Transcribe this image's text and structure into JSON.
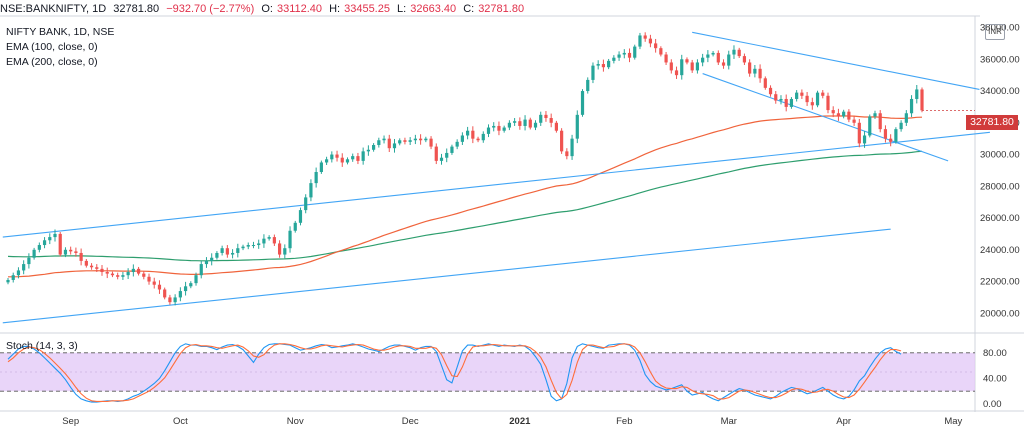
{
  "header": {
    "symbol": "NSE:BANKNIFTY, 1D",
    "last": "32781.80",
    "change": "−932.70 (−2.77%)",
    "o_label": "O:",
    "o_value": "33112.40",
    "h_label": "H:",
    "h_value": "33455.25",
    "l_label": "L:",
    "l_value": "32663.40",
    "c_label": "C:",
    "c_value": "32781.80"
  },
  "legend": {
    "title": "NIFTY BANK, 1D, NSE",
    "ema100": "EMA (100, close, 0)",
    "ema200": "EMA (200, close, 0)",
    "stoch": "Stoch (14, 3, 3)"
  },
  "currency": "INR",
  "last_price_label": "32781.80",
  "colors": {
    "up": "#26a69a",
    "down": "#ef5350",
    "ema100": "#f0643c",
    "ema200": "#2e9e6e",
    "trend": "#42a5f5",
    "stoch_k": "#2196f3",
    "stoch_d": "#ff6d3a",
    "stoch_band": "#e1c7f7"
  },
  "chart_data": [
    {
      "type": "candlestick",
      "title": "NIFTY BANK, 1D, NSE",
      "x_ticks": [
        "Sep",
        "Oct",
        "Nov",
        "Dec",
        "2021",
        "Feb",
        "Mar",
        "Apr",
        "May"
      ],
      "y_ticks": [
        "38000.00",
        "36000.00",
        "34000.00",
        "32000.00",
        "30000.00",
        "28000.00",
        "26000.00",
        "24000.00",
        "22000.00",
        "20000.00"
      ],
      "ylim": [
        19200,
        38600
      ],
      "legend_position": "top-left",
      "grid": false,
      "close": [
        22100,
        22400,
        22700,
        23100,
        23500,
        24000,
        24300,
        24600,
        24800,
        25000,
        23700,
        24000,
        23900,
        23800,
        23300,
        23000,
        22900,
        22800,
        22600,
        22500,
        22400,
        22300,
        22400,
        22600,
        22800,
        22500,
        22300,
        22000,
        21800,
        21500,
        21000,
        20700,
        21000,
        21400,
        21700,
        21900,
        22400,
        23100,
        23300,
        23500,
        23800,
        24100,
        23700,
        23800,
        24100,
        24200,
        24300,
        24300,
        24400,
        24700,
        24800,
        24400,
        23700,
        24100,
        25200,
        25700,
        26500,
        27300,
        28200,
        28900,
        29500,
        29700,
        30000,
        29800,
        29500,
        29700,
        29900,
        29600,
        30200,
        30300,
        30600,
        30900,
        31000,
        30400,
        30700,
        30900,
        30800,
        30900,
        31000,
        30900,
        31000,
        30500,
        29600,
        29800,
        30100,
        30500,
        30800,
        31200,
        31500,
        31000,
        30900,
        31300,
        31700,
        31800,
        31500,
        31700,
        32000,
        32100,
        31800,
        32200,
        31700,
        32000,
        32500,
        32300,
        32000,
        31500,
        30200,
        29900,
        31000,
        32500,
        34000,
        34700,
        35600,
        35700,
        35500,
        35900,
        36100,
        36300,
        36400,
        36100,
        36800,
        37500,
        37300,
        37000,
        36700,
        36300,
        35800,
        35300,
        35000,
        36000,
        35800,
        35300,
        35800,
        36100,
        36300,
        36400,
        35800,
        35600,
        36300,
        36600,
        36200,
        35800,
        35100,
        35400,
        34800,
        34200,
        33800,
        33400,
        33500,
        33000,
        33500,
        33900,
        33700,
        33300,
        33100,
        33900,
        33700,
        32800,
        32600,
        32400,
        32700,
        32200,
        32000,
        30700,
        31200,
        32400,
        32600,
        31600,
        31000,
        30800,
        31600,
        32000,
        32600,
        33500,
        34100,
        32782
      ]
    },
    {
      "type": "line",
      "title": "Stoch (14, 3, 3)",
      "y_ticks": [
        "80.00",
        "40.00",
        "0.00"
      ],
      "ylim": [
        0,
        100
      ],
      "band": [
        20,
        80
      ],
      "series": [
        {
          "name": "%K",
          "values": [
            70,
            78,
            86,
            90,
            90,
            86,
            80,
            72,
            64,
            56,
            48,
            38,
            26,
            15,
            8,
            5,
            3,
            3,
            4,
            5,
            5,
            4,
            5,
            8,
            12,
            15,
            20,
            26,
            32,
            40,
            52,
            66,
            80,
            90,
            94,
            92,
            92,
            90,
            90,
            88,
            85,
            89,
            92,
            93,
            90,
            85,
            75,
            65,
            78,
            88,
            93,
            94,
            94,
            93,
            92,
            88,
            84,
            86,
            88,
            91,
            93,
            92,
            88,
            89,
            91,
            92,
            94,
            92,
            89,
            86,
            84,
            82,
            86,
            90,
            92,
            92,
            90,
            88,
            84,
            88,
            90,
            90,
            82,
            60,
            38,
            33,
            58,
            83,
            92,
            92,
            90,
            92,
            94,
            92,
            90,
            92,
            91,
            90,
            92,
            90,
            84,
            74,
            62,
            38,
            12,
            5,
            8,
            32,
            72,
            90,
            94,
            92,
            90,
            88,
            87,
            92,
            93,
            94,
            94,
            92,
            84,
            68,
            46,
            35,
            28,
            25,
            22,
            24,
            27,
            30,
            20,
            14,
            16,
            18,
            12,
            8,
            5,
            10,
            15,
            20,
            24,
            22,
            18,
            14,
            12,
            10,
            8,
            12,
            18,
            22,
            26,
            24,
            20,
            16,
            18,
            22,
            26,
            20,
            14,
            10,
            8,
            12,
            22,
            36,
            44,
            58,
            70,
            80,
            86,
            88,
            82,
            78
          ]
        },
        {
          "name": "%D",
          "values": [
            66,
            72,
            80,
            86,
            89,
            88,
            85,
            79,
            72,
            64,
            56,
            47,
            37,
            26,
            16,
            9,
            5,
            4,
            4,
            4,
            5,
            5,
            5,
            6,
            8,
            12,
            16,
            20,
            26,
            33,
            41,
            53,
            66,
            79,
            88,
            92,
            93,
            91,
            91,
            90,
            88,
            87,
            89,
            91,
            92,
            89,
            83,
            75,
            73,
            77,
            86,
            92,
            94,
            94,
            93,
            91,
            88,
            86,
            86,
            88,
            91,
            92,
            91,
            90,
            89,
            91,
            92,
            93,
            92,
            89,
            86,
            84,
            84,
            86,
            89,
            91,
            91,
            90,
            87,
            87,
            87,
            89,
            87,
            77,
            60,
            44,
            43,
            58,
            78,
            89,
            91,
            91,
            92,
            93,
            92,
            91,
            91,
            91,
            91,
            91,
            88,
            82,
            73,
            58,
            37,
            18,
            8,
            15,
            37,
            65,
            85,
            92,
            92,
            90,
            88,
            89,
            90,
            93,
            94,
            93,
            89,
            80,
            66,
            50,
            36,
            29,
            25,
            24,
            24,
            27,
            26,
            21,
            17,
            16,
            15,
            13,
            8,
            8,
            10,
            15,
            20,
            22,
            21,
            18,
            15,
            12,
            10,
            10,
            13,
            17,
            22,
            24,
            23,
            20,
            18,
            19,
            22,
            23,
            20,
            15,
            11,
            10,
            14,
            23,
            34,
            46,
            57,
            69,
            79,
            85,
            85,
            83
          ]
        }
      ]
    }
  ]
}
